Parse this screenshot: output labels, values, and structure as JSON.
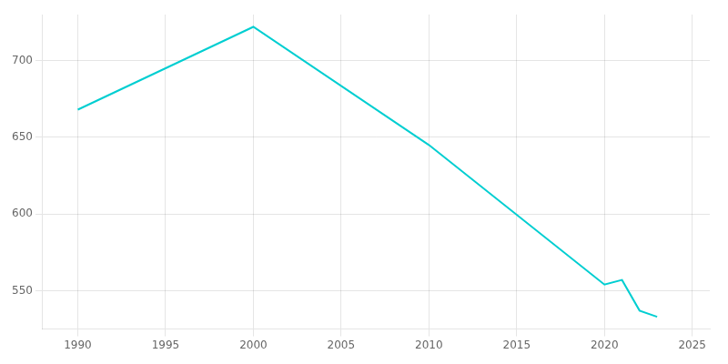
{
  "chart_data": {
    "type": "line",
    "x": [
      1990,
      2000,
      2010,
      2020,
      2021,
      2022,
      2023
    ],
    "values": [
      668,
      722,
      645,
      554,
      557,
      537,
      533
    ],
    "color": "#00CED1",
    "xlim": [
      1988,
      2026
    ],
    "xticks": [
      1990,
      1995,
      2000,
      2005,
      2010,
      2015,
      2020,
      2025
    ],
    "ylim": [
      525,
      730
    ],
    "yticks": [
      550,
      600,
      650,
      700
    ],
    "grid": true
  }
}
